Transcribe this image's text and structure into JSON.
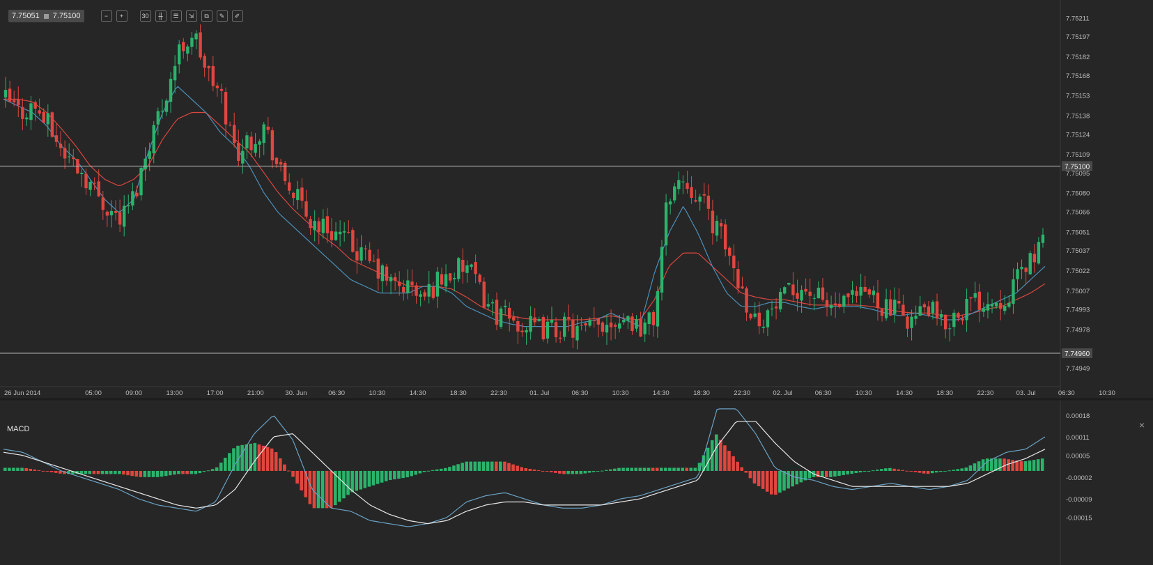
{
  "toolbar": {
    "bid": "7.75051",
    "ask": "7.75100",
    "buttons": [
      {
        "name": "zoom-out-icon",
        "glyph": "−"
      },
      {
        "name": "zoom-in-icon",
        "glyph": "+"
      },
      {
        "name": "timeframe-button",
        "glyph": "30"
      },
      {
        "name": "candlestick-type-icon",
        "glyph": "╫"
      },
      {
        "name": "indicators-icon",
        "glyph": "☰"
      },
      {
        "name": "chart-settings-icon",
        "glyph": "⇲"
      },
      {
        "name": "layers-icon",
        "glyph": "⧉"
      },
      {
        "name": "edit-icon",
        "glyph": "✎"
      },
      {
        "name": "draw-pen-icon",
        "glyph": "✐"
      }
    ]
  },
  "macd_label": "MACD",
  "close_glyph": "×",
  "colors": {
    "background": "#262626",
    "grid": "#3a3a3a",
    "up": "#2bb36b",
    "down": "#e0463f",
    "ma_fast": "#4c8fb8",
    "ma_slow": "#d9473f",
    "macd_line": "#6aa2c4",
    "signal_line": "#e8e8e8",
    "hline": "#b5b5b5",
    "text": "#bdbdbd"
  },
  "chart_data": [
    {
      "type": "candlestick",
      "ylim": [
        7.74935,
        7.7522
      ],
      "price_labels": [
        "7.75211",
        "7.75197",
        "7.75182",
        "7.75168",
        "7.75153",
        "7.75138",
        "7.75124",
        "7.75109",
        "7.75095",
        "7.75080",
        "7.75066",
        "7.75051",
        "7.75037",
        "7.75022",
        "7.75007",
        "7.74993",
        "7.74978",
        "7.74949"
      ],
      "hlines": [
        {
          "value": 7.751,
          "label": "7.75100"
        },
        {
          "value": 7.7496,
          "label": "7.74960"
        }
      ],
      "time_labels": [
        "26 Jun 2014",
        "05:00",
        "09:00",
        "13:00",
        "17:00",
        "21:00",
        "30. Jun",
        "06:30",
        "10:30",
        "14:30",
        "18:30",
        "22:30",
        "01. Jul",
        "06:30",
        "10:30",
        "14:30",
        "18:30",
        "22:30",
        "02. Jul",
        "06:30",
        "10:30",
        "14:30",
        "18:30",
        "22:30",
        "03. Jul",
        "06:30",
        "10:30"
      ],
      "candle_count": 246,
      "close_path": [
        7.7515,
        7.7514,
        7.75145,
        7.7513,
        7.7511,
        7.751,
        7.75085,
        7.7507,
        7.7506,
        7.7508,
        7.7512,
        7.7515,
        7.75185,
        7.752,
        7.7517,
        7.7515,
        7.7511,
        7.7512,
        7.7513,
        7.75095,
        7.7508,
        7.7506,
        7.75055,
        7.7505,
        7.7504,
        7.7503,
        7.7502,
        7.7501,
        7.7501,
        7.75,
        7.75015,
        7.7502,
        7.75025,
        7.75005,
        7.7499,
        7.74985,
        7.7498,
        7.74978,
        7.74978,
        7.7498,
        7.74975,
        7.7498,
        7.74985,
        7.74988,
        7.7498,
        7.74985,
        7.7508,
        7.7509,
        7.7508,
        7.7506,
        7.7504,
        7.7501,
        7.74985,
        7.7499,
        7.75,
        7.7501,
        7.75005,
        7.74995,
        7.74995,
        7.75,
        7.75005,
        7.74995,
        7.7499,
        7.74985,
        7.74995,
        7.7498,
        7.7499,
        7.74998,
        7.75,
        7.75,
        7.7501,
        7.7503,
        7.7504
      ],
      "ma_fast_path": [
        7.7515,
        7.75145,
        7.7514,
        7.7513,
        7.75115,
        7.75105,
        7.7509,
        7.75075,
        7.75065,
        7.75075,
        7.7511,
        7.7514,
        7.7516,
        7.7515,
        7.7514,
        7.75125,
        7.75115,
        7.751,
        7.7508,
        7.75065,
        7.75055,
        7.75045,
        7.75035,
        7.75025,
        7.75015,
        7.7501,
        7.75005,
        7.75005,
        7.75005,
        7.7501,
        7.7501,
        7.75005,
        7.74995,
        7.7499,
        7.74985,
        7.74982,
        7.7498,
        7.7498,
        7.7498,
        7.7498,
        7.74983,
        7.74985,
        7.7499,
        7.74985,
        7.7498,
        7.7502,
        7.7505,
        7.7507,
        7.7505,
        7.75025,
        7.75005,
        7.74995,
        7.74995,
        7.74998,
        7.74998,
        7.74995,
        7.74993,
        7.74995,
        7.74995,
        7.74995,
        7.74993,
        7.7499,
        7.74988,
        7.7499,
        7.74988,
        7.74985,
        7.74985,
        7.7499,
        7.74995,
        7.75,
        7.75005,
        7.75015,
        7.75025
      ],
      "ma_slow_path": [
        7.7515,
        7.7515,
        7.75148,
        7.7514,
        7.75128,
        7.75115,
        7.751,
        7.7509,
        7.75085,
        7.7509,
        7.751,
        7.7512,
        7.75135,
        7.7514,
        7.7514,
        7.7513,
        7.7512,
        7.7511,
        7.75095,
        7.7508,
        7.75068,
        7.75058,
        7.75048,
        7.7504,
        7.7503,
        7.75025,
        7.7502,
        7.75015,
        7.7501,
        7.7501,
        7.7501,
        7.75008,
        7.75002,
        7.74995,
        7.7499,
        7.74988,
        7.74986,
        7.74985,
        7.74985,
        7.74985,
        7.74985,
        7.74986,
        7.74988,
        7.74986,
        7.74985,
        7.75,
        7.75025,
        7.75035,
        7.75035,
        7.75025,
        7.75015,
        7.75005,
        7.75002,
        7.75,
        7.75,
        7.74998,
        7.74996,
        7.74996,
        7.74996,
        7.74996,
        7.74995,
        7.74993,
        7.74991,
        7.7499,
        7.7499,
        7.74988,
        7.74988,
        7.7499,
        7.74993,
        7.74995,
        7.75,
        7.75005,
        7.75012
      ]
    },
    {
      "type": "macd",
      "ylim": [
        -0.0002,
        0.00022
      ],
      "y_labels": [
        "0.00018",
        "0.00011",
        "0.00005",
        "-0.00002",
        "-0.00009",
        "-0.00015"
      ],
      "macd_path": [
        7e-05,
        6e-05,
        3e-05,
        0.0,
        -2e-05,
        -4e-05,
        -6e-05,
        -9e-05,
        -0.00011,
        -0.00012,
        -0.00013,
        -0.0001,
        2e-05,
        0.00012,
        0.00018,
        0.0001,
        -6e-05,
        -0.00012,
        -0.00013,
        -0.00016,
        -0.00017,
        -0.00018,
        -0.00017,
        -0.00015,
        -0.0001,
        -8e-05,
        -7e-05,
        -9e-05,
        -0.00011,
        -0.00012,
        -0.00012,
        -0.00011,
        -9e-05,
        -8e-05,
        -6e-05,
        -4e-05,
        -2e-05,
        0.0002,
        0.0002,
        0.00012,
        1e-05,
        -2e-05,
        -3e-05,
        -5e-05,
        -6e-05,
        -5e-05,
        -4e-05,
        -5e-05,
        -6e-05,
        -5e-05,
        -3e-05,
        3e-05,
        6e-05,
        7e-05,
        0.00011
      ],
      "signal_path": [
        6e-05,
        5e-05,
        3e-05,
        1e-05,
        -1e-05,
        -3e-05,
        -5e-05,
        -7e-05,
        -9e-05,
        -0.00011,
        -0.00012,
        -0.00011,
        -6e-05,
        3e-05,
        0.00011,
        0.00012,
        6e-05,
        0.0,
        -6e-05,
        -0.00011,
        -0.00014,
        -0.00016,
        -0.00017,
        -0.00016,
        -0.00013,
        -0.00011,
        -0.0001,
        -0.0001,
        -0.00011,
        -0.00011,
        -0.00011,
        -0.00011,
        -0.0001,
        -9e-05,
        -7e-05,
        -5e-05,
        -3e-05,
        8e-05,
        0.00016,
        0.00016,
        9e-05,
        3e-05,
        -1e-05,
        -3e-05,
        -5e-05,
        -5e-05,
        -5e-05,
        -5e-05,
        -5e-05,
        -5e-05,
        -4e-05,
        -1e-05,
        2e-05,
        4e-05,
        7e-05
      ]
    }
  ]
}
